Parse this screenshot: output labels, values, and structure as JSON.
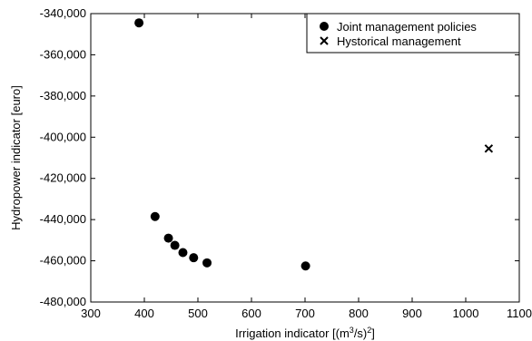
{
  "chart_data": {
    "type": "scatter",
    "title": "",
    "xlabel": "Irrigation indicator [(m",
    "xlabel_sup1": "3",
    "xlabel_mid": "/s)",
    "xlabel_sup2": "2",
    "xlabel_end": "]",
    "ylabel": "Hydropower indicator [euro]",
    "xlim": [
      300,
      1100
    ],
    "ylim": [
      -480000,
      -340000
    ],
    "xticks": [
      300,
      400,
      500,
      600,
      700,
      800,
      900,
      1000,
      1100
    ],
    "yticks": [
      -340000,
      -360000,
      -380000,
      -400000,
      -420000,
      -440000,
      -460000,
      -480000
    ],
    "xtick_labels": [
      "300",
      "400",
      "500",
      "600",
      "700",
      "800",
      "900",
      "1000",
      "1100"
    ],
    "ytick_labels": [
      "-340,000",
      "-360,000",
      "-380,000",
      "-400,000",
      "-420,000",
      "-440,000",
      "-460,000",
      "-480,000"
    ],
    "grid": false,
    "legend_position": "top-right",
    "series": [
      {
        "name": "Joint management policies",
        "marker": "circle",
        "color": "#000000",
        "points": [
          {
            "x": 390,
            "y": -344500
          },
          {
            "x": 420,
            "y": -438500
          },
          {
            "x": 445,
            "y": -449000
          },
          {
            "x": 457,
            "y": -452500
          },
          {
            "x": 472,
            "y": -456000
          },
          {
            "x": 492,
            "y": -458500
          },
          {
            "x": 517,
            "y": -461000
          },
          {
            "x": 701,
            "y": -462500
          }
        ]
      },
      {
        "name": "Hystorical management",
        "marker": "x",
        "color": "#000000",
        "points": [
          {
            "x": 1043,
            "y": -405500
          }
        ]
      }
    ]
  }
}
